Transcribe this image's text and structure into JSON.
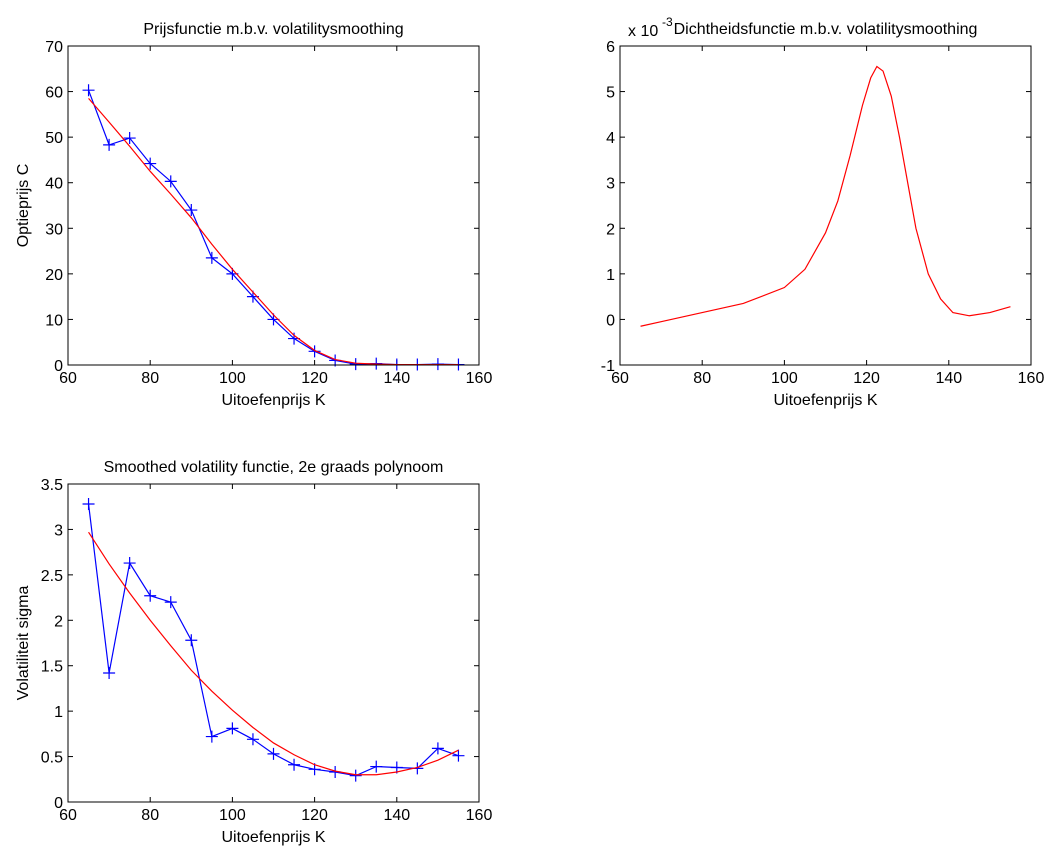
{
  "chart_data": [
    {
      "type": "line",
      "title": "Prijsfunctie m.b.v. volatilitysmoothing",
      "xlabel": "Uitoefenprijs K",
      "ylabel": "Optieprijs C",
      "xlim": [
        60,
        160
      ],
      "xticks": [
        60,
        80,
        100,
        120,
        140,
        160
      ],
      "ylim": [
        0,
        70
      ],
      "yticks": [
        0,
        10,
        20,
        30,
        40,
        50,
        60,
        70
      ],
      "series": [
        {
          "color": "#0000ff",
          "marker": "+",
          "x": [
            65,
            70,
            75,
            80,
            85,
            90,
            95,
            100,
            105,
            110,
            115,
            120,
            125,
            130,
            135,
            140,
            145,
            150,
            155
          ],
          "values": [
            60.3,
            48.3,
            49.8,
            44.2,
            40.3,
            34,
            23.5,
            20,
            15,
            10,
            5.8,
            3,
            1,
            0.2,
            0.3,
            0.1,
            0.1,
            0.2,
            0.1
          ]
        },
        {
          "color": "#ff0000",
          "x": [
            65,
            70,
            75,
            80,
            85,
            90,
            95,
            100,
            105,
            110,
            115,
            120,
            125,
            130,
            135,
            140,
            145,
            150,
            155
          ],
          "values": [
            58.5,
            53.3,
            48,
            42.5,
            37.5,
            32.3,
            26.5,
            21,
            16,
            11,
            6.5,
            3.2,
            1.2,
            0.4,
            0.2,
            0.1,
            0.1,
            0.1,
            0.1
          ]
        }
      ]
    },
    {
      "type": "line",
      "title": "Dichtheidsfunctie m.b.v. volatilitysmoothing",
      "xlabel": "Uitoefenprijs K",
      "y_multiplier": "x 10",
      "y_multiplier_power": "-3",
      "xlim": [
        60,
        160
      ],
      "xticks": [
        60,
        80,
        100,
        120,
        140,
        160
      ],
      "ylim": [
        -1,
        6
      ],
      "yticks": [
        -1,
        0,
        1,
        2,
        3,
        4,
        5,
        6
      ],
      "series": [
        {
          "color": "#ff0000",
          "x": [
            65,
            70,
            80,
            90,
            100,
            105,
            110,
            113,
            116,
            119,
            121,
            122.5,
            124,
            126,
            128,
            130,
            132,
            135,
            138,
            141,
            145,
            150,
            155
          ],
          "values": [
            -0.15,
            -0.05,
            0.15,
            0.35,
            0.7,
            1.1,
            1.9,
            2.6,
            3.6,
            4.7,
            5.3,
            5.55,
            5.45,
            4.9,
            4.0,
            3.0,
            2.0,
            1.0,
            0.45,
            0.15,
            0.08,
            0.15,
            0.28
          ]
        }
      ]
    },
    {
      "type": "line",
      "title": "Smoothed volatility functie, 2e graads polynoom",
      "xlabel": "Uitoefenprijs K",
      "ylabel": "Volatiliteit sigma",
      "xlim": [
        60,
        160
      ],
      "xticks": [
        60,
        80,
        100,
        120,
        140,
        160
      ],
      "ylim": [
        0,
        3.5
      ],
      "yticks": [
        0,
        0.5,
        1,
        1.5,
        2,
        2.5,
        3,
        3.5
      ],
      "series": [
        {
          "color": "#0000ff",
          "marker": "+",
          "x": [
            65,
            70,
            75,
            80,
            85,
            90,
            95,
            100,
            105,
            110,
            115,
            120,
            125,
            130,
            135,
            140,
            145,
            150,
            155
          ],
          "values": [
            3.28,
            1.42,
            2.63,
            2.27,
            2.2,
            1.78,
            0.72,
            0.81,
            0.69,
            0.53,
            0.41,
            0.36,
            0.33,
            0.29,
            0.39,
            0.38,
            0.37,
            0.59,
            0.51
          ]
        },
        {
          "color": "#ff0000",
          "x": [
            65,
            70,
            75,
            80,
            85,
            90,
            95,
            100,
            105,
            110,
            115,
            120,
            125,
            130,
            135,
            140,
            145,
            150,
            155
          ],
          "values": [
            2.97,
            2.62,
            2.3,
            2.0,
            1.72,
            1.45,
            1.22,
            1.01,
            0.82,
            0.65,
            0.52,
            0.41,
            0.34,
            0.3,
            0.3,
            0.33,
            0.38,
            0.46,
            0.57
          ]
        }
      ]
    }
  ]
}
